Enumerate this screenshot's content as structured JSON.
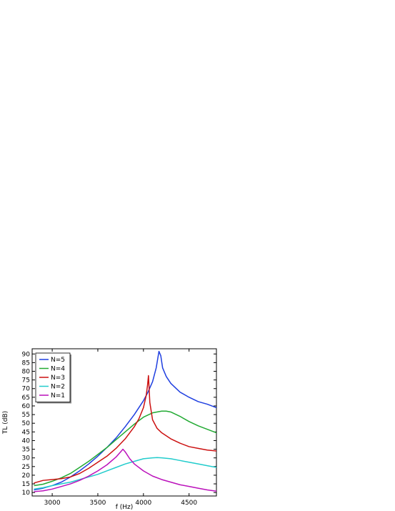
{
  "chart_data": {
    "type": "line",
    "xlabel": "f (Hz)",
    "ylabel": "TL (dB)",
    "xlim": [
      2780,
      4800
    ],
    "ylim": [
      8,
      93
    ],
    "xticks": [
      3000,
      3500,
      4000,
      4500
    ],
    "yticks": [
      10,
      15,
      20,
      25,
      30,
      35,
      40,
      45,
      50,
      55,
      60,
      65,
      70,
      75,
      80,
      85,
      90
    ],
    "grid": false,
    "legend_position": "top-left",
    "series": [
      {
        "name": "N=5",
        "color": "#1f3fe0",
        "x": [
          2800,
          2900,
          3000,
          3100,
          3200,
          3300,
          3400,
          3500,
          3600,
          3700,
          3800,
          3900,
          4000,
          4050,
          4100,
          4140,
          4170,
          4190,
          4210,
          4250,
          4300,
          4400,
          4500,
          4600,
          4700,
          4800
        ],
        "y": [
          11.5,
          12.5,
          14,
          16,
          19,
          22.5,
          26.5,
          31,
          36,
          41.5,
          48,
          55,
          63,
          68,
          74,
          82,
          91.5,
          89,
          82,
          77,
          73,
          68,
          65,
          62.5,
          61,
          59
        ]
      },
      {
        "name": "N=4",
        "color": "#22aa33",
        "x": [
          2800,
          2900,
          3000,
          3100,
          3200,
          3300,
          3400,
          3500,
          3600,
          3700,
          3800,
          3900,
          4000,
          4100,
          4200,
          4250,
          4300,
          4400,
          4500,
          4600,
          4700,
          4800
        ],
        "y": [
          14,
          14.8,
          16.5,
          18.5,
          21,
          24.5,
          28,
          32,
          36,
          40.5,
          45,
          49.5,
          53.5,
          56,
          57,
          57,
          56.5,
          54,
          51,
          48.5,
          46.5,
          44.5
        ]
      },
      {
        "name": "N=3",
        "color": "#cc1111",
        "x": [
          2800,
          2900,
          3000,
          3100,
          3200,
          3300,
          3400,
          3500,
          3600,
          3700,
          3800,
          3900,
          3950,
          4000,
          4030,
          4045,
          4055,
          4070,
          4100,
          4150,
          4200,
          4300,
          4400,
          4500,
          4600,
          4700,
          4800
        ],
        "y": [
          15.5,
          17,
          17.5,
          18,
          19,
          21,
          24,
          27.5,
          31,
          35.5,
          41,
          48,
          52.5,
          59,
          66,
          72,
          77.5,
          62,
          52,
          47,
          44.5,
          41,
          38.5,
          36.5,
          35.5,
          34.5,
          34
        ]
      },
      {
        "name": "N=2",
        "color": "#22cccc",
        "x": [
          2800,
          2900,
          3000,
          3100,
          3200,
          3300,
          3400,
          3500,
          3600,
          3700,
          3800,
          3900,
          4000,
          4100,
          4150,
          4200,
          4300,
          4400,
          4500,
          4600,
          4700,
          4800
        ],
        "y": [
          12,
          12.8,
          14,
          15,
          16,
          17.5,
          19,
          20.5,
          22.5,
          24.5,
          26.5,
          28,
          29.5,
          30,
          30.2,
          30,
          29.5,
          28.5,
          27.5,
          26.5,
          25.5,
          24.5
        ]
      },
      {
        "name": "N=1",
        "color": "#bb11bb",
        "x": [
          2800,
          2900,
          3000,
          3100,
          3200,
          3300,
          3400,
          3500,
          3600,
          3700,
          3750,
          3775,
          3800,
          3850,
          3900,
          4000,
          4100,
          4200,
          4300,
          4400,
          4500,
          4600,
          4700,
          4800
        ],
        "y": [
          10.5,
          11,
          12,
          13.5,
          15,
          17,
          19.5,
          22.5,
          26,
          30.5,
          33.5,
          35,
          33.5,
          29.5,
          26.5,
          22.5,
          19.5,
          17.5,
          16,
          14.5,
          13.5,
          12.5,
          11.5,
          10.8
        ]
      }
    ]
  }
}
